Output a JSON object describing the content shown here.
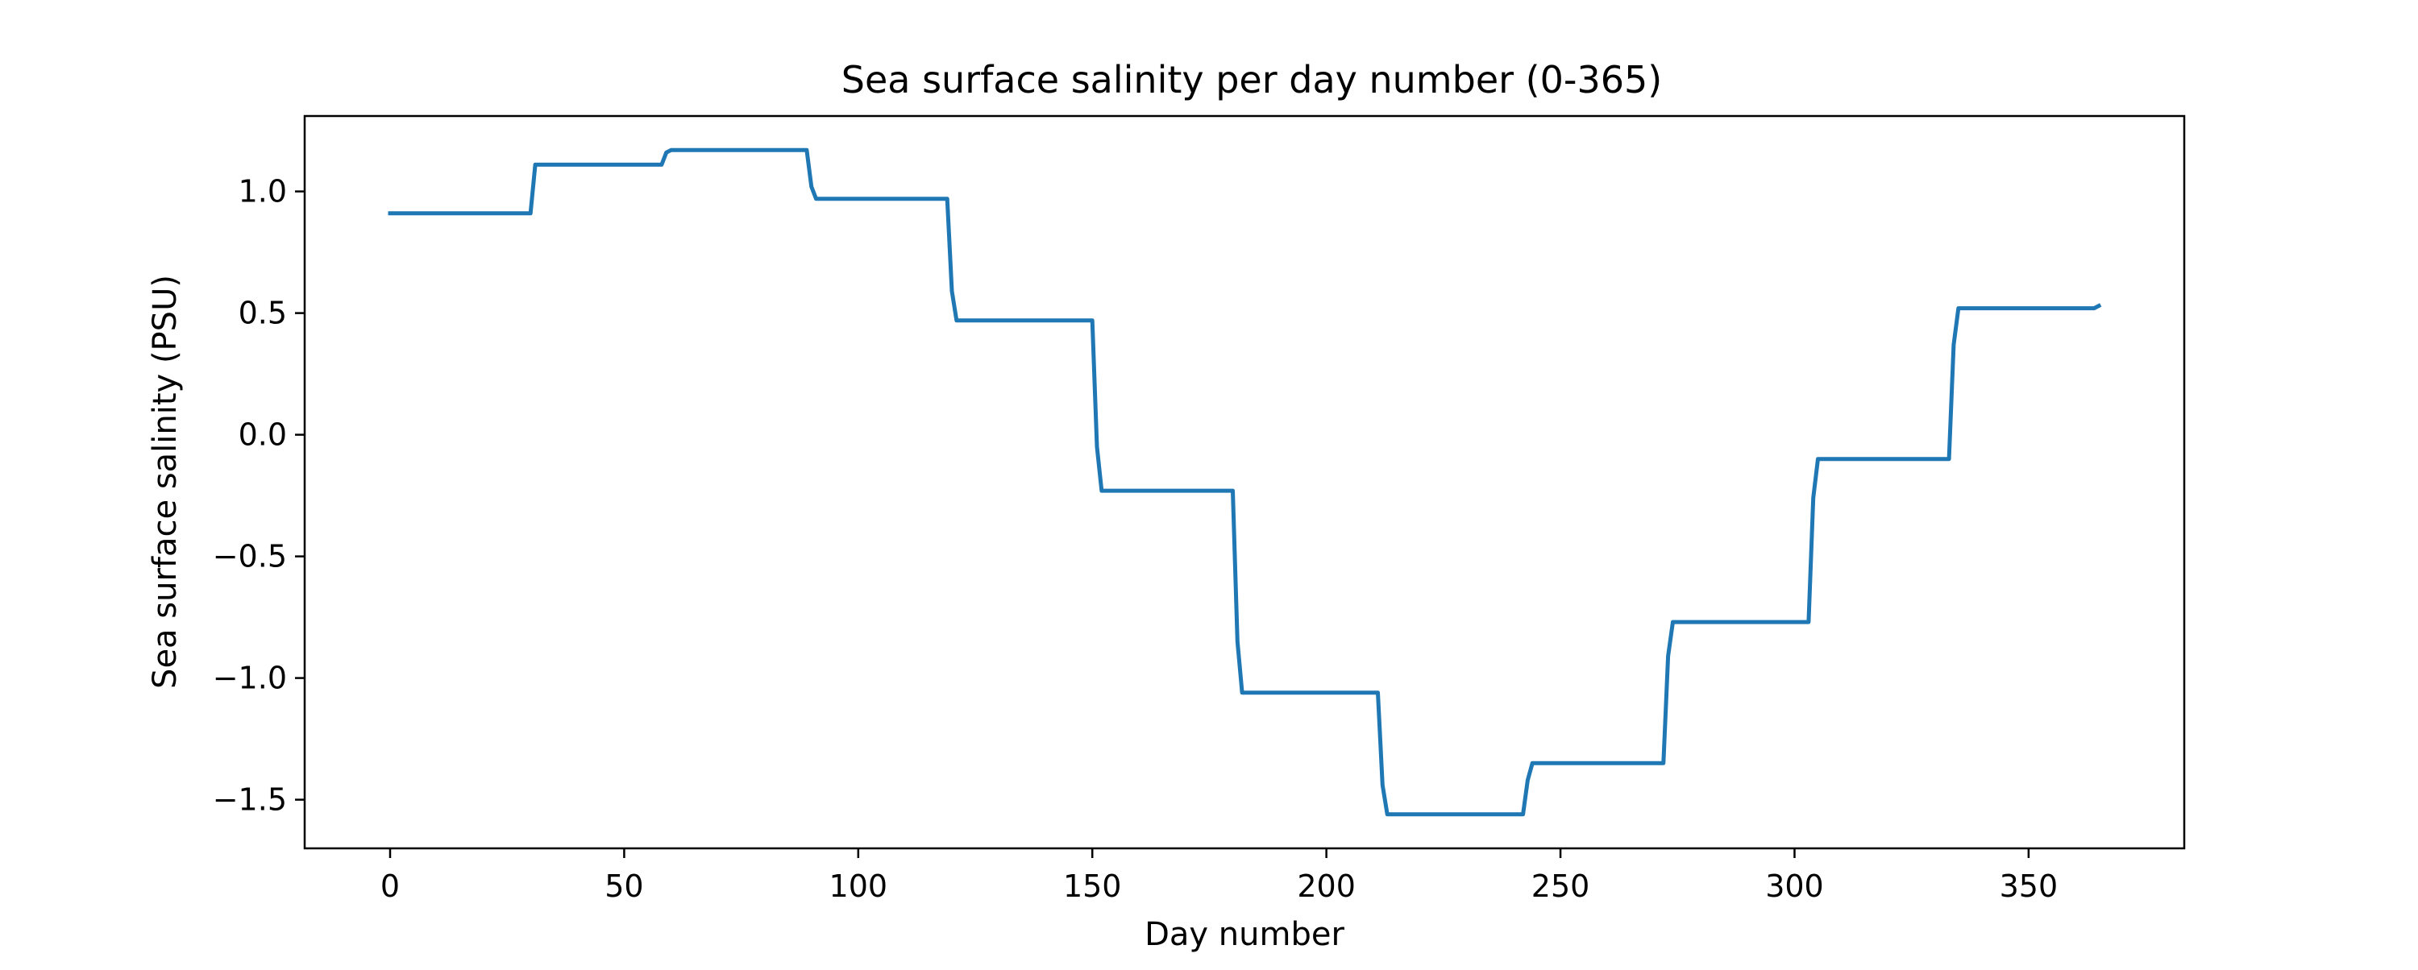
{
  "chart_data": {
    "type": "line",
    "title": "Sea surface salinity per day number (0-365)",
    "xlabel": "Day number",
    "ylabel": "Sea surface salinity (PSU)",
    "xlim": [
      -18.25,
      383.25
    ],
    "ylim": [
      -1.7,
      1.31
    ],
    "xticks": [
      0,
      50,
      100,
      150,
      200,
      250,
      300,
      350
    ],
    "xtick_labels": [
      "0",
      "50",
      "100",
      "150",
      "200",
      "250",
      "300",
      "350"
    ],
    "yticks": [
      -1.5,
      -1.0,
      -0.5,
      0.0,
      0.5,
      1.0
    ],
    "ytick_labels": [
      "−1.5",
      "−1.0",
      "−0.5",
      "0.0",
      "0.5",
      "1.0"
    ],
    "grid": false,
    "legend": "none",
    "colors": {
      "line": "#1f77b4",
      "axes": "#000000",
      "background": "#ffffff"
    },
    "series": [
      {
        "x": [
          0,
          30,
          31,
          58,
          59,
          60,
          89,
          90,
          91,
          119,
          120,
          121,
          150,
          151,
          152,
          180,
          181,
          182,
          211,
          212,
          213,
          242,
          243,
          244,
          272,
          273,
          274,
          303,
          304,
          305,
          333,
          334,
          335,
          364,
          365
        ],
        "y": [
          0.91,
          0.91,
          1.11,
          1.11,
          1.16,
          1.17,
          1.17,
          1.02,
          0.97,
          0.97,
          0.59,
          0.47,
          0.47,
          -0.05,
          -0.23,
          -0.23,
          -0.85,
          -1.06,
          -1.06,
          -1.44,
          -1.56,
          -1.56,
          -1.42,
          -1.35,
          -1.35,
          -0.91,
          -0.77,
          -0.77,
          -0.26,
          -0.1,
          -0.1,
          0.37,
          0.52,
          0.52,
          0.53
        ]
      }
    ]
  }
}
